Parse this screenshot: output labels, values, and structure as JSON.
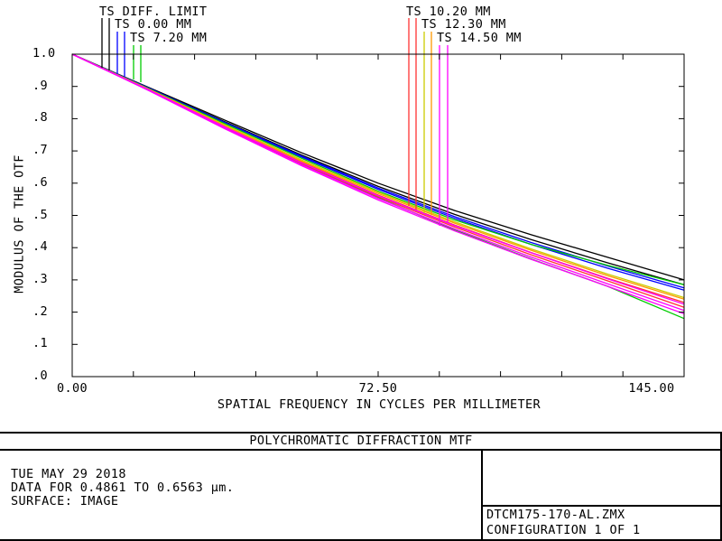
{
  "chart_data": {
    "type": "line",
    "title": "POLYCHROMATIC DIFFRACTION MTF",
    "xlabel": "SPATIAL FREQUENCY IN CYCLES PER MILLIMETER",
    "ylabel": "MODULUS OF THE OTF",
    "xlim": [
      0,
      145
    ],
    "ylim": [
      0,
      1
    ],
    "x_tick_labels": [
      "0.00",
      "72.50",
      "145.00"
    ],
    "y_tick_labels": [
      ".0",
      ".1",
      ".2",
      ".3",
      ".4",
      ".5",
      ".6",
      ".7",
      ".8",
      ".9",
      "1.0"
    ],
    "legend": [
      "TS DIFF. LIMIT",
      "TS 0.00 MM",
      "TS 7.20 MM",
      "TS 10.20 MM",
      "TS 12.30 MM",
      "TS 14.50 MM"
    ],
    "x": [
      0,
      18.125,
      36.25,
      54.375,
      72.5,
      90.625,
      108.75,
      126.875,
      145
    ],
    "series": [
      {
        "name": "TS DIFF. LIMIT",
        "color": "#000000",
        "values": [
          1.0,
          0.897,
          0.795,
          0.694,
          0.6,
          0.515,
          0.44,
          0.37,
          0.3
        ]
      },
      {
        "color": "#000000",
        "values": [
          1.0,
          0.895,
          0.79,
          0.687,
          0.59,
          0.503,
          0.425,
          0.353,
          0.285
        ]
      },
      {
        "name": "TS 0.00 MM",
        "color": "#0000ff",
        "values": [
          1.0,
          0.895,
          0.788,
          0.684,
          0.585,
          0.496,
          0.416,
          0.343,
          0.275
        ]
      },
      {
        "color": "#0000ff",
        "values": [
          1.0,
          0.894,
          0.786,
          0.681,
          0.581,
          0.491,
          0.41,
          0.336,
          0.268
        ]
      },
      {
        "name": "TS 7.20 MM",
        "color": "#00cc00",
        "values": [
          1.0,
          0.893,
          0.784,
          0.677,
          0.575,
          0.486,
          0.41,
          0.345,
          0.285
        ]
      },
      {
        "color": "#00cc00",
        "values": [
          1.0,
          0.89,
          0.773,
          0.66,
          0.555,
          0.455,
          0.365,
          0.28,
          0.18
        ]
      },
      {
        "name": "TS 10.20 MM",
        "color": "#ff3333",
        "values": [
          1.0,
          0.89,
          0.775,
          0.665,
          0.563,
          0.47,
          0.385,
          0.305,
          0.23
        ]
      },
      {
        "color": "#ff3333",
        "values": [
          1.0,
          0.889,
          0.772,
          0.661,
          0.558,
          0.464,
          0.378,
          0.297,
          0.215
        ]
      },
      {
        "name": "TS 12.30 MM",
        "color": "#cccc00",
        "values": [
          1.0,
          0.892,
          0.78,
          0.672,
          0.572,
          0.48,
          0.396,
          0.318,
          0.245
        ]
      },
      {
        "color": "#ff9900",
        "values": [
          1.0,
          0.891,
          0.777,
          0.668,
          0.568,
          0.476,
          0.392,
          0.313,
          0.24
        ]
      },
      {
        "name": "TS 14.50 MM",
        "color": "#ff00ff",
        "values": [
          1.0,
          0.89,
          0.774,
          0.663,
          0.561,
          0.468,
          0.384,
          0.303,
          0.225
        ]
      },
      {
        "color": "#ff00ff",
        "values": [
          1.0,
          0.888,
          0.77,
          0.657,
          0.553,
          0.458,
          0.371,
          0.288,
          0.205
        ]
      },
      {
        "color": "#ff00ff",
        "values": [
          1.0,
          0.887,
          0.768,
          0.654,
          0.548,
          0.452,
          0.364,
          0.28,
          0.195
        ]
      }
    ]
  },
  "info": {
    "date": "TUE MAY 29 2018",
    "data_line": "DATA FOR 0.4861 TO 0.6563 μm.",
    "surface": "SURFACE: IMAGE",
    "filename": "DTCM175-170-AL.ZMX",
    "configuration": "CONFIGURATION 1 OF 1"
  },
  "legend_flag_colors": {
    "left_group": [
      "#000000",
      "#000000",
      "#0000ff",
      "#0000ff",
      "#00cc00",
      "#00cc00"
    ],
    "right_group": [
      "#ff3333",
      "#ff3333",
      "#cccc00",
      "#ff9900",
      "#ff00ff",
      "#ff00ff"
    ]
  }
}
